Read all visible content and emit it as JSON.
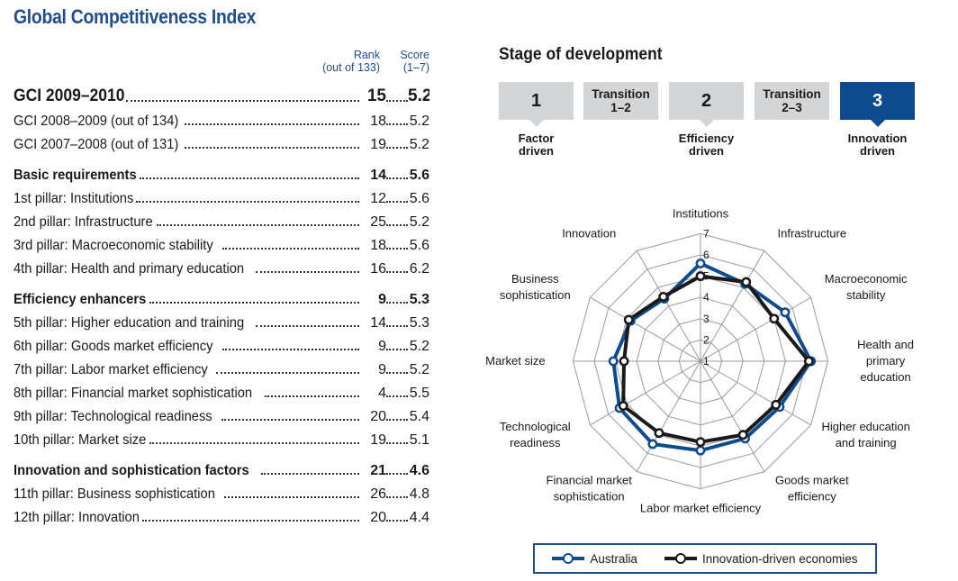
{
  "title": "Global Competitiveness Index",
  "table": {
    "rank_header": [
      "Rank",
      "(out of 133)"
    ],
    "score_header": [
      "Score",
      "(1–7)"
    ],
    "rows": [
      {
        "label": "GCI 2009–2010",
        "rank": "15",
        "score": "5.2",
        "style": "top"
      },
      {
        "label": "GCI 2008–2009 (out of 134)",
        "rank": "18",
        "score": "5.2",
        "style": "normal"
      },
      {
        "label": "GCI 2007–2008 (out of 131)",
        "rank": "19",
        "score": "5.2",
        "style": "normal"
      },
      {
        "label": "Basic requirements",
        "rank": "14",
        "score": "5.6",
        "style": "major"
      },
      {
        "label": "1st pillar: Institutions",
        "rank": "12",
        "score": "5.6",
        "style": "normal"
      },
      {
        "label": "2nd pillar: Infrastructure",
        "rank": "25",
        "score": "5.2",
        "style": "normal"
      },
      {
        "label": "3rd pillar: Macroeconomic stability",
        "rank": "18",
        "score": "5.6",
        "style": "normal"
      },
      {
        "label": "4th pillar: Health and primary education",
        "rank": "16",
        "score": "6.2",
        "style": "normal"
      },
      {
        "label": "Efficiency enhancers",
        "rank": "9",
        "score": "5.3",
        "style": "major"
      },
      {
        "label": "5th pillar: Higher education and training",
        "rank": "14",
        "score": "5.3",
        "style": "normal"
      },
      {
        "label": "6th pillar: Goods market efficiency",
        "rank": "9",
        "score": "5.2",
        "style": "normal"
      },
      {
        "label": "7th pillar: Labor market efficiency",
        "rank": "9",
        "score": "5.2",
        "style": "normal"
      },
      {
        "label": "8th pillar: Financial market sophistication",
        "rank": "4",
        "score": "5.5",
        "style": "normal"
      },
      {
        "label": "9th pillar: Technological readiness",
        "rank": "20",
        "score": "5.4",
        "style": "normal"
      },
      {
        "label": "10th pillar: Market size",
        "rank": "19",
        "score": "5.1",
        "style": "normal"
      },
      {
        "label": "Innovation and sophistication factors",
        "rank": "21",
        "score": "4.6",
        "style": "major"
      },
      {
        "label": "11th pillar: Business sophistication",
        "rank": "26",
        "score": "4.8",
        "style": "normal"
      },
      {
        "label": "12th pillar: Innovation",
        "rank": "20",
        "score": "4.4",
        "style": "normal"
      }
    ]
  },
  "stage": {
    "title": "Stage of development",
    "boxes": [
      {
        "label": "1",
        "kind": "num",
        "caption": [
          "Factor",
          "driven"
        ],
        "active": false
      },
      {
        "label": "Transition\n1–2",
        "kind": "trans",
        "caption": null,
        "active": false
      },
      {
        "label": "2",
        "kind": "num",
        "caption": [
          "Efficiency",
          "driven"
        ],
        "active": false
      },
      {
        "label": "Transition\n2–3",
        "kind": "trans",
        "caption": null,
        "active": false
      },
      {
        "label": "3",
        "kind": "num",
        "caption": [
          "Innovation",
          "driven"
        ],
        "active": true
      }
    ]
  },
  "colors": {
    "australia": "#0f4c8f",
    "benchmark": "#1a1a1a",
    "grid": "#9a9a9a",
    "accent": "#1f4e89"
  },
  "chart_data": {
    "type": "radar",
    "title": "",
    "axes": [
      [
        "Institutions"
      ],
      [
        "Infrastructure"
      ],
      [
        "Macroeconomic",
        "stability"
      ],
      [
        "Health and",
        "primary",
        "education"
      ],
      [
        "Higher education",
        "and training"
      ],
      [
        "Goods market",
        "efficiency"
      ],
      [
        "Labor market efficiency"
      ],
      [
        "Financial market",
        "sophistication"
      ],
      [
        "Technological",
        "readiness"
      ],
      [
        "Market size"
      ],
      [
        "Business",
        "sophistication"
      ],
      [
        "Innovation"
      ]
    ],
    "scale": {
      "min": 1,
      "max": 7,
      "ticks": [
        1,
        2,
        3,
        4,
        5,
        6,
        7
      ]
    },
    "series": [
      {
        "name": "Australia",
        "values": [
          5.6,
          5.2,
          5.6,
          6.2,
          5.3,
          5.2,
          5.2,
          5.5,
          5.4,
          5.1,
          4.8,
          4.4
        ]
      },
      {
        "name": "Innovation-driven economies",
        "values": [
          5.0,
          5.3,
          5.0,
          6.1,
          5.1,
          5.0,
          4.8,
          4.9,
          5.2,
          4.6,
          4.9,
          4.5
        ]
      }
    ],
    "legend": "bottom"
  },
  "legend": {
    "items": [
      "Australia",
      "Innovation-driven economies"
    ]
  }
}
